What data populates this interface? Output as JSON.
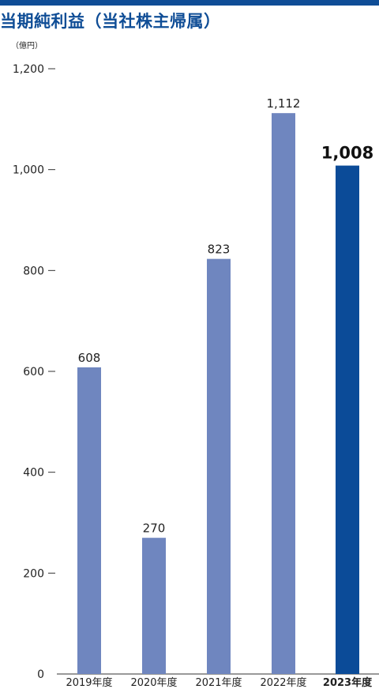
{
  "header": {
    "title": "当期純利益（当社株主帰属）",
    "unit": "（億円）"
  },
  "colors": {
    "accent": "#0f4d96",
    "bar": "#6f86bf",
    "bar_highlight": "#0b4b98",
    "axis": "#333333"
  },
  "chart_data": {
    "type": "bar",
    "title": "当期純利益（当社株主帰属）",
    "ylabel": "（億円）",
    "xlabel": "",
    "categories": [
      "2019年度",
      "2020年度",
      "2021年度",
      "2022年度",
      "2023年度"
    ],
    "values": [
      608,
      270,
      823,
      1112,
      1008
    ],
    "value_labels": [
      "608",
      "270",
      "823",
      "1,112",
      "1,008"
    ],
    "highlight_index": 4,
    "ylim": [
      0,
      1200
    ],
    "yticks": [
      0,
      200,
      400,
      600,
      800,
      1000,
      1200
    ],
    "ytick_labels": [
      "0",
      "200",
      "400",
      "600",
      "800",
      "1,000",
      "1,200"
    ],
    "grid": false,
    "legend": "none"
  }
}
